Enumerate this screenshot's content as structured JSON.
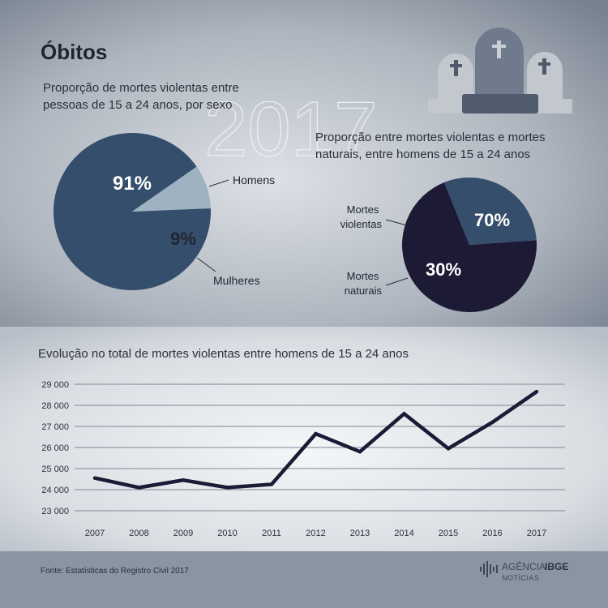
{
  "header": {
    "title": "Óbitos",
    "year": "2017"
  },
  "footer": {
    "source": "Fonte: Estatísticas do Registro Civil 2017",
    "brand_agencia": "AGÊNCIA",
    "brand_ibge": "IBGE",
    "brand_noticias": "NOTÍCIAS"
  },
  "colors": {
    "dark_blue": "#344e6b",
    "light_blue": "#9fb2c2",
    "navy": "#1c1a35",
    "line": "#1c1a35",
    "text_dark": "#1f2530"
  },
  "icons": [
    "tombstones-icon",
    "cross-icon",
    "agencia-ibge-logo-icon"
  ],
  "chart_data": [
    {
      "type": "pie",
      "title": "Proporção de mortes violentas entre pessoas de 15 a 24 anos, por sexo",
      "title_lines": [
        "Proporção de mortes violentas entre",
        "pessoas de 15 a 24 anos, por sexo"
      ],
      "slices": [
        {
          "label": "Homens",
          "value": 91,
          "value_label": "91%",
          "color": "#344e6b"
        },
        {
          "label": "Mulheres",
          "value": 9,
          "value_label": "9%",
          "color": "#9fb2c2"
        }
      ]
    },
    {
      "type": "pie",
      "title": "Proporção entre mortes violentas e mortes naturais, entre homens de 15 a 24 anos",
      "title_lines": [
        "Proporção entre mortes violentas e mortes",
        "naturais, entre homens de 15 a 24 anos"
      ],
      "slices": [
        {
          "label": "Mortes violentas",
          "label_lines": [
            "Mortes",
            "violentas"
          ],
          "value": 70,
          "value_label": "70%",
          "color": "#1c1a35"
        },
        {
          "label": "Mortes naturais",
          "label_lines": [
            "Mortes",
            "naturais"
          ],
          "value": 30,
          "value_label": "30%",
          "color": "#344e6b"
        }
      ]
    },
    {
      "type": "line",
      "title": "Evolução no total de mortes violentas entre homens de 15 a 24 anos",
      "x": [
        "2007",
        "2008",
        "2009",
        "2010",
        "2011",
        "2012",
        "2013",
        "2014",
        "2015",
        "2016",
        "2017"
      ],
      "series": [
        {
          "values": [
            24550,
            24100,
            24450,
            24100,
            24250,
            26650,
            25800,
            27600,
            25950,
            27200,
            28650
          ]
        }
      ],
      "ylim": [
        23000,
        29000
      ],
      "yticks": [
        23000,
        24000,
        25000,
        26000,
        27000,
        28000,
        29000
      ],
      "ytick_labels": [
        "23 000",
        "24 000",
        "25 000",
        "26 000",
        "27 000",
        "28 000",
        "29 000"
      ],
      "grid": true
    }
  ]
}
